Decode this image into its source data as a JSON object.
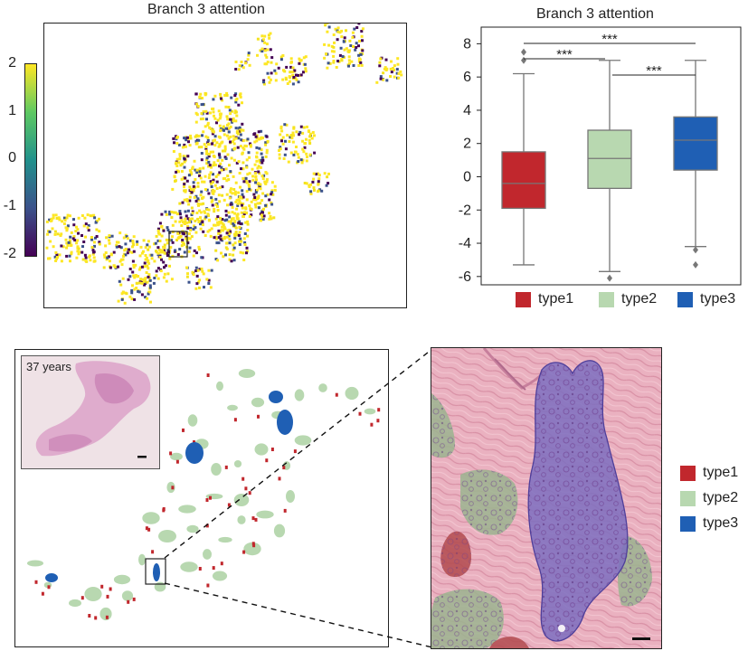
{
  "panel_a": {
    "title": "Branch 3 attention",
    "colorbar": {
      "ticks": [
        "2",
        "1",
        "0",
        "-1",
        "-2"
      ],
      "colors": [
        "#fde725",
        "#5ec962",
        "#21918c",
        "#3b528b",
        "#440154"
      ]
    }
  },
  "panel_b": {
    "title": "Branch 3 attention",
    "significance": [
      "***",
      "***",
      "***"
    ],
    "legend": [
      {
        "label": "type1",
        "color": "#c1272d"
      },
      {
        "label": "type2",
        "color": "#b8d8b0"
      },
      {
        "label": "type3",
        "color": "#1f5fb4"
      }
    ]
  },
  "panel_c": {
    "inset_label": "37 years",
    "legend": [
      {
        "label": "type1",
        "color": "#c1272d"
      },
      {
        "label": "type2",
        "color": "#b8d8b0"
      },
      {
        "label": "type3",
        "color": "#1f5fb4"
      }
    ]
  },
  "chart_data": {
    "type": "box",
    "title": "Branch 3 attention",
    "categories": [
      "type1",
      "type2",
      "type3"
    ],
    "colors": [
      "#c1272d",
      "#b8d8b0",
      "#1f5fb4"
    ],
    "ylim": [
      -6.5,
      9
    ],
    "yticks": [
      -6,
      -4,
      -2,
      0,
      2,
      4,
      6,
      8
    ],
    "boxes": [
      {
        "name": "type1",
        "whisker_low": -5.3,
        "q1": -1.9,
        "median": -0.4,
        "q3": 1.5,
        "whisker_high": 6.2,
        "outliers": [
          7.0,
          7.5
        ]
      },
      {
        "name": "type2",
        "whisker_low": -5.7,
        "q1": -0.7,
        "median": 1.1,
        "q3": 2.8,
        "whisker_high": 7.0,
        "outliers": [
          -6.1
        ]
      },
      {
        "name": "type3",
        "whisker_low": -4.2,
        "q1": 0.4,
        "median": 2.2,
        "q3": 3.6,
        "whisker_high": 7.0,
        "outliers": [
          -4.4,
          -5.3
        ]
      }
    ]
  }
}
